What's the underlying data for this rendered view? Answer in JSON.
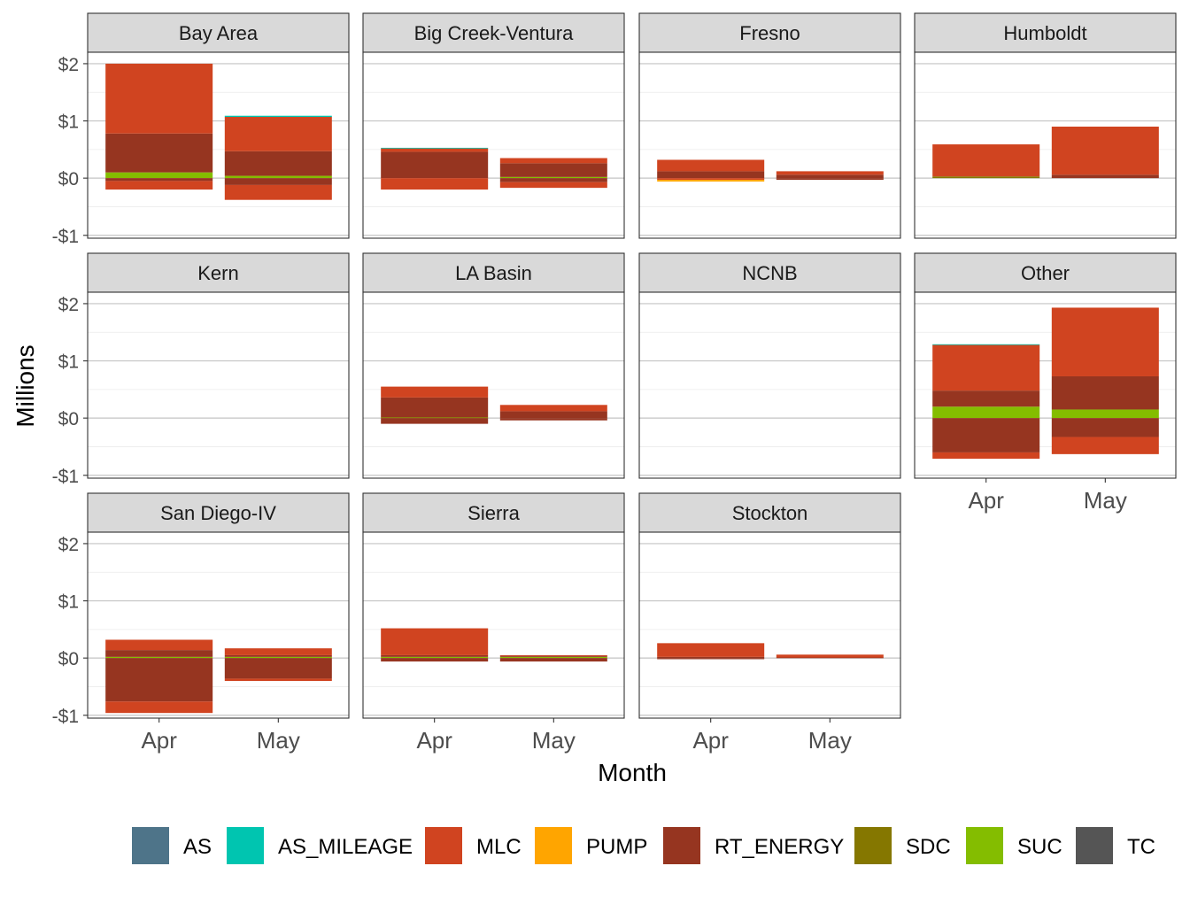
{
  "chart_data": {
    "type": "bar",
    "stacked": true,
    "faceted": true,
    "xlabel": "Month",
    "ylabel": "Millions",
    "categories": [
      "Apr",
      "May"
    ],
    "ylim": [
      -1.05,
      2.2
    ],
    "y_ticks": [
      {
        "value": 2,
        "label": "$2"
      },
      {
        "value": 1,
        "label": "$1"
      },
      {
        "value": 0,
        "label": "$0"
      },
      {
        "value": -1,
        "label": "-$1"
      }
    ],
    "legend": {
      "position": "bottom",
      "items": [
        {
          "name": "AS",
          "color": "#4e7489"
        },
        {
          "name": "AS_MILEAGE",
          "color": "#00c5b0"
        },
        {
          "name": "MLC",
          "color": "#d04420"
        },
        {
          "name": "PUMP",
          "color": "#ffa500"
        },
        {
          "name": "RT_ENERGY",
          "color": "#963520"
        },
        {
          "name": "SDC",
          "color": "#857700"
        },
        {
          "name": "SUC",
          "color": "#84bd00"
        },
        {
          "name": "TC",
          "color": "#555555"
        }
      ]
    },
    "panels": [
      {
        "name": "Bay Area",
        "bars": {
          "Apr": [
            {
              "series": "SUC",
              "value": 0.1
            },
            {
              "series": "RT_ENERGY",
              "value": 0.68
            },
            {
              "series": "MLC",
              "value": 1.22
            },
            {
              "series": "RT_ENERGY",
              "value": -0.05
            },
            {
              "series": "MLC",
              "value": -0.15
            }
          ],
          "May": [
            {
              "series": "SUC",
              "value": 0.04
            },
            {
              "series": "RT_ENERGY",
              "value": 0.43
            },
            {
              "series": "MLC",
              "value": 0.6
            },
            {
              "series": "AS_MILEAGE",
              "value": 0.02
            },
            {
              "series": "RT_ENERGY",
              "value": -0.12
            },
            {
              "series": "MLC",
              "value": -0.26
            }
          ]
        }
      },
      {
        "name": "Big Creek-Ventura",
        "bars": {
          "Apr": [
            {
              "series": "RT_ENERGY",
              "value": 0.46
            },
            {
              "series": "MLC",
              "value": 0.06
            },
            {
              "series": "AS_MILEAGE",
              "value": 0.01
            },
            {
              "series": "MLC",
              "value": -0.2
            }
          ],
          "May": [
            {
              "series": "SUC",
              "value": 0.02
            },
            {
              "series": "RT_ENERGY",
              "value": 0.24
            },
            {
              "series": "MLC",
              "value": 0.09
            },
            {
              "series": "RT_ENERGY",
              "value": -0.07
            },
            {
              "series": "MLC",
              "value": -0.1
            }
          ]
        }
      },
      {
        "name": "Fresno",
        "bars": {
          "Apr": [
            {
              "series": "RT_ENERGY",
              "value": 0.12
            },
            {
              "series": "MLC",
              "value": 0.2
            },
            {
              "series": "MLC",
              "value": -0.03
            },
            {
              "series": "PUMP",
              "value": -0.03
            }
          ],
          "May": [
            {
              "series": "RT_ENERGY",
              "value": 0.06
            },
            {
              "series": "MLC",
              "value": 0.06
            },
            {
              "series": "RT_ENERGY",
              "value": -0.03
            }
          ]
        }
      },
      {
        "name": "Humboldt",
        "bars": {
          "Apr": [
            {
              "series": "SDC",
              "value": 0.03
            },
            {
              "series": "MLC",
              "value": 0.56
            }
          ],
          "May": [
            {
              "series": "RT_ENERGY",
              "value": 0.06
            },
            {
              "series": "MLC",
              "value": 0.84
            }
          ]
        }
      },
      {
        "name": "Kern",
        "bars": {
          "Apr": [],
          "May": []
        }
      },
      {
        "name": "LA Basin",
        "bars": {
          "Apr": [
            {
              "series": "SUC",
              "value": 0.01
            },
            {
              "series": "RT_ENERGY",
              "value": 0.35
            },
            {
              "series": "MLC",
              "value": 0.19
            },
            {
              "series": "RT_ENERGY",
              "value": -0.1
            }
          ],
          "May": [
            {
              "series": "RT_ENERGY",
              "value": 0.12
            },
            {
              "series": "MLC",
              "value": 0.11
            },
            {
              "series": "RT_ENERGY",
              "value": -0.04
            }
          ]
        }
      },
      {
        "name": "NCNB",
        "bars": {
          "Apr": [],
          "May": []
        }
      },
      {
        "name": "Other",
        "bars": {
          "Apr": [
            {
              "series": "SUC",
              "value": 0.2
            },
            {
              "series": "RT_ENERGY",
              "value": 0.28
            },
            {
              "series": "MLC",
              "value": 0.8
            },
            {
              "series": "AS_MILEAGE",
              "value": 0.01
            },
            {
              "series": "RT_ENERGY",
              "value": -0.6
            },
            {
              "series": "MLC",
              "value": -0.11
            }
          ],
          "May": [
            {
              "series": "SUC",
              "value": 0.15
            },
            {
              "series": "RT_ENERGY",
              "value": 0.58
            },
            {
              "series": "MLC",
              "value": 1.2
            },
            {
              "series": "RT_ENERGY",
              "value": -0.33
            },
            {
              "series": "MLC",
              "value": -0.3
            }
          ]
        }
      },
      {
        "name": "San Diego-IV",
        "bars": {
          "Apr": [
            {
              "series": "SUC",
              "value": 0.02
            },
            {
              "series": "RT_ENERGY",
              "value": 0.12
            },
            {
              "series": "MLC",
              "value": 0.18
            },
            {
              "series": "RT_ENERGY",
              "value": -0.76
            },
            {
              "series": "MLC",
              "value": -0.2
            }
          ],
          "May": [
            {
              "series": "SUC",
              "value": 0.02
            },
            {
              "series": "RT_ENERGY",
              "value": 0.03
            },
            {
              "series": "MLC",
              "value": 0.12
            },
            {
              "series": "RT_ENERGY",
              "value": -0.36
            },
            {
              "series": "MLC",
              "value": -0.04
            }
          ]
        }
      },
      {
        "name": "Sierra",
        "bars": {
          "Apr": [
            {
              "series": "SUC",
              "value": 0.02
            },
            {
              "series": "RT_ENERGY",
              "value": 0.03
            },
            {
              "series": "MLC",
              "value": 0.47
            },
            {
              "series": "RT_ENERGY",
              "value": -0.06
            }
          ],
          "May": [
            {
              "series": "SUC",
              "value": 0.02
            },
            {
              "series": "RT_ENERGY",
              "value": 0.02
            },
            {
              "series": "MLC",
              "value": 0.01
            },
            {
              "series": "RT_ENERGY",
              "value": -0.06
            }
          ]
        }
      },
      {
        "name": "Stockton",
        "bars": {
          "Apr": [
            {
              "series": "RT_ENERGY",
              "value": 0.02
            },
            {
              "series": "MLC",
              "value": 0.24
            },
            {
              "series": "RT_ENERGY",
              "value": -0.02
            }
          ],
          "May": [
            {
              "series": "RT_ENERGY",
              "value": 0.01
            },
            {
              "series": "MLC",
              "value": 0.05
            }
          ]
        }
      }
    ]
  }
}
